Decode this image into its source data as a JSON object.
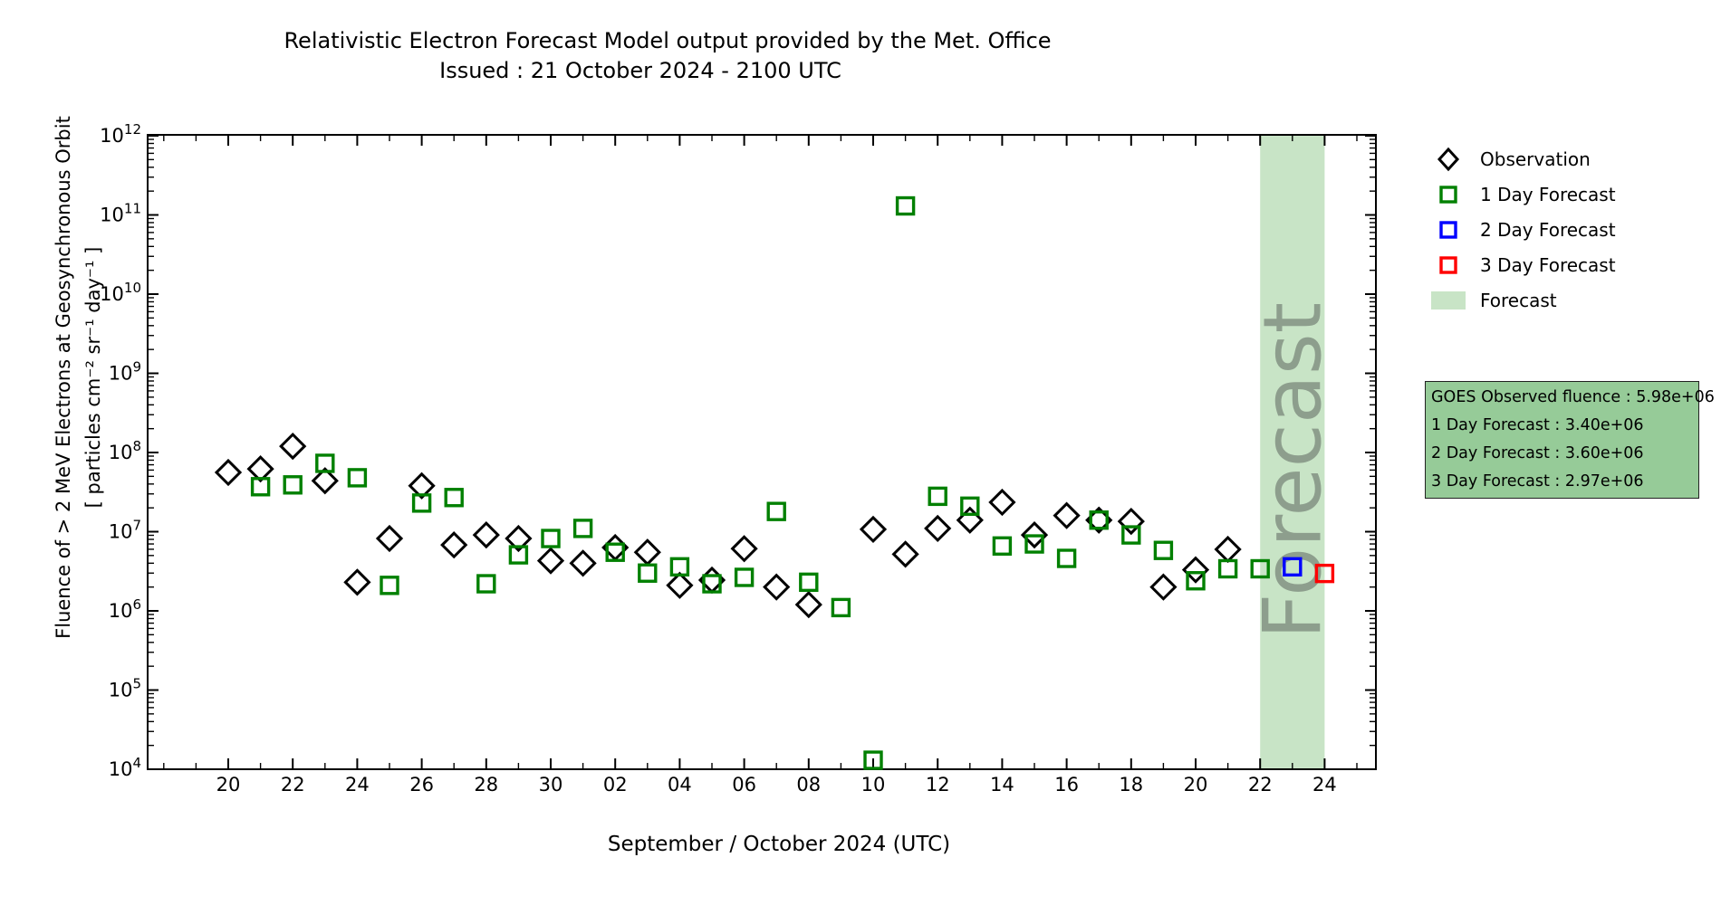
{
  "title": {
    "line1": "Relativistic Electron Forecast Model output provided by the Met. Office",
    "line2": "Issued : 21 October 2024 - 2100 UTC"
  },
  "legend": {
    "items": [
      {
        "label": "Observation",
        "marker": "diamond",
        "color": "#000000"
      },
      {
        "label": "1 Day Forecast",
        "marker": "square",
        "color": "#008000"
      },
      {
        "label": "2 Day Forecast",
        "marker": "square",
        "color": "#0000ff"
      },
      {
        "label": "3 Day Forecast",
        "marker": "square",
        "color": "#ff0000"
      },
      {
        "label": "Forecast",
        "marker": "patch",
        "color": "#c8e4c6"
      }
    ]
  },
  "info_box": {
    "bg_color": "#96cb98",
    "border_color": "#222222",
    "lines": [
      "GOES Observed fluence : 5.98e+06",
      "1 Day Forecast : 3.40e+06",
      "2 Day Forecast : 3.60e+06",
      "3 Day Forecast : 2.97e+06"
    ]
  },
  "chart_data": {
    "type": "scatter",
    "title": "Relativistic Electron Forecast Model output provided by the Met. Office",
    "subtitle": "Issued : 21 October 2024 - 2100 UTC",
    "x_axis": {
      "label": "September / October 2024 (UTC)",
      "ticks": [
        {
          "index": 0,
          "label": "20"
        },
        {
          "index": 2,
          "label": "22"
        },
        {
          "index": 4,
          "label": "24"
        },
        {
          "index": 6,
          "label": "26"
        },
        {
          "index": 8,
          "label": "28"
        },
        {
          "index": 10,
          "label": "30"
        },
        {
          "index": 12,
          "label": "02"
        },
        {
          "index": 14,
          "label": "04"
        },
        {
          "index": 16,
          "label": "06"
        },
        {
          "index": 18,
          "label": "08"
        },
        {
          "index": 20,
          "label": "10"
        },
        {
          "index": 22,
          "label": "12"
        },
        {
          "index": 24,
          "label": "14"
        },
        {
          "index": 26,
          "label": "16"
        },
        {
          "index": 28,
          "label": "18"
        },
        {
          "index": 30,
          "label": "20"
        },
        {
          "index": 32,
          "label": "22"
        },
        {
          "index": 34,
          "label": "24"
        }
      ],
      "range_index": [
        -2.5,
        35.6
      ]
    },
    "y_axis": {
      "label_line1": "Fluence of > 2 MeV Electrons at Geosynchronous Orbit",
      "label_line2": "[ particles cm⁻² sr⁻¹ day⁻¹ ]",
      "scale": "log",
      "min": 10000.0,
      "max": 1000000000000.0,
      "tick_exponents": [
        4,
        5,
        6,
        7,
        8,
        9,
        10,
        11,
        12
      ]
    },
    "grid": false,
    "legend_position": "upper right, outside axes",
    "categories": [
      "Sep 20",
      "Sep 21",
      "Sep 22",
      "Sep 23",
      "Sep 24",
      "Sep 25",
      "Sep 26",
      "Sep 27",
      "Sep 28",
      "Sep 29",
      "Sep 30",
      "Oct 01",
      "Oct 02",
      "Oct 03",
      "Oct 04",
      "Oct 05",
      "Oct 06",
      "Oct 07",
      "Oct 08",
      "Oct 09",
      "Oct 10",
      "Oct 11",
      "Oct 12",
      "Oct 13",
      "Oct 14",
      "Oct 15",
      "Oct 16",
      "Oct 17",
      "Oct 18",
      "Oct 19",
      "Oct 20",
      "Oct 21",
      "Oct 22",
      "Oct 23",
      "Oct 24"
    ],
    "series": [
      {
        "name": "Observation",
        "marker": "diamond",
        "color": "#000000",
        "values": [
          56000000.0,
          62000000.0,
          120000000.0,
          44000000.0,
          2300000.0,
          8200000.0,
          38000000.0,
          6800000.0,
          9100000.0,
          8200000.0,
          4300000.0,
          4000000.0,
          6300000.0,
          5500000.0,
          2100000.0,
          2450000.0,
          6100000.0,
          2000000.0,
          1200000.0,
          null,
          10700000.0,
          5200000.0,
          11000000.0,
          14000000.0,
          23500000.0,
          9100000.0,
          16000000.0,
          14000000.0,
          13500000.0,
          2000000.0,
          3300000.0,
          5980000.0,
          null,
          null,
          null
        ]
      },
      {
        "name": "1 Day Forecast",
        "marker": "square",
        "color": "#008000",
        "values": [
          null,
          37000000.0,
          39000000.0,
          73000000.0,
          48000000.0,
          2100000.0,
          23000000.0,
          27000000.0,
          2200000.0,
          5100000.0,
          8200000.0,
          11000000.0,
          5500000.0,
          3000000.0,
          3600000.0,
          2200000.0,
          2650000.0,
          18000000.0,
          2300000.0,
          1100000.0,
          13000.0,
          130000000000.0,
          28000000.0,
          21000000.0,
          6600000.0,
          7000000.0,
          4600000.0,
          14000000.0,
          9100000.0,
          5800000.0,
          2400000.0,
          3400000.0,
          3400000.0,
          null,
          null
        ]
      },
      {
        "name": "2 Day Forecast",
        "marker": "square",
        "color": "#0000ff",
        "values": [
          null,
          null,
          null,
          null,
          null,
          null,
          null,
          null,
          null,
          null,
          null,
          null,
          null,
          null,
          null,
          null,
          null,
          null,
          null,
          null,
          null,
          null,
          null,
          null,
          null,
          null,
          null,
          null,
          null,
          null,
          null,
          null,
          null,
          3600000.0,
          null
        ]
      },
      {
        "name": "3 Day Forecast",
        "marker": "square",
        "color": "#ff0000",
        "values": [
          null,
          null,
          null,
          null,
          null,
          null,
          null,
          null,
          null,
          null,
          null,
          null,
          null,
          null,
          null,
          null,
          null,
          null,
          null,
          null,
          null,
          null,
          null,
          null,
          null,
          null,
          null,
          null,
          null,
          null,
          null,
          null,
          null,
          null,
          2970000.0
        ]
      }
    ],
    "forecast_band": {
      "from_index": 32,
      "to_index": 34,
      "color": "#c8e4c6",
      "watermark_text": "Forecast",
      "watermark_color": "#8d9e8d"
    }
  }
}
